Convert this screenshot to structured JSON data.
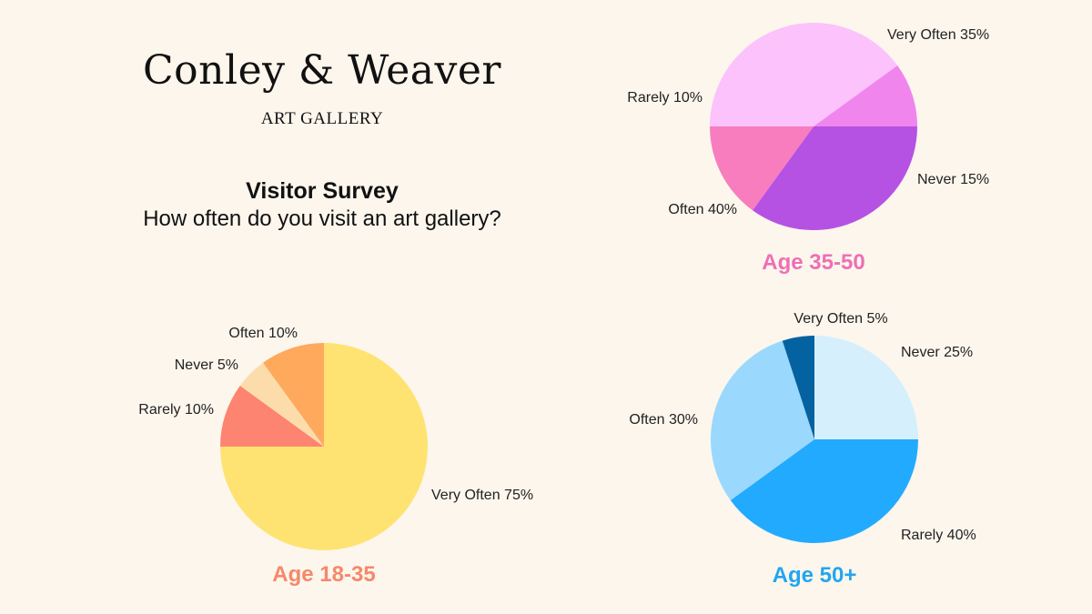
{
  "brand": {
    "title": "Conley & Weaver",
    "subtitle": "ART GALLERY"
  },
  "survey": {
    "title": "Visitor Survey",
    "question": "How often do you visit an art gallery?"
  },
  "chart_data": [
    {
      "type": "pie",
      "title": "Age 35-50",
      "title_color": "#ef6fb5",
      "slices": [
        {
          "label": "Very Often",
          "value": 35,
          "display": "Very Often 35%",
          "color": "#b552e3"
        },
        {
          "label": "Never",
          "value": 15,
          "display": "Never 15%",
          "color": "#f77dbe"
        },
        {
          "label": "Often",
          "value": 40,
          "display": "Often 40%",
          "color": "#fbc2fb"
        },
        {
          "label": "Rarely",
          "value": 10,
          "display": "Rarely 10%",
          "color": "#f185ee"
        }
      ]
    },
    {
      "type": "pie",
      "title": "Age 18-35",
      "title_color": "#f6886a",
      "slices": [
        {
          "label": "Very Often",
          "value": 75,
          "display": "Very Often 75%",
          "color": "#ffe372"
        },
        {
          "label": "Rarely",
          "value": 10,
          "display": "Rarely 10%",
          "color": "#fd8470"
        },
        {
          "label": "Never",
          "value": 5,
          "display": "Never 5%",
          "color": "#fddcab"
        },
        {
          "label": "Often",
          "value": 10,
          "display": "Often 10%",
          "color": "#fea95c"
        }
      ]
    },
    {
      "type": "pie",
      "title": "Age 50+",
      "title_color": "#22a6ee",
      "slices": [
        {
          "label": "Never",
          "value": 25,
          "display": "Never 25%",
          "color": "#d6effd"
        },
        {
          "label": "Rarely",
          "value": 40,
          "display": "Rarely 40%",
          "color": "#22aaff"
        },
        {
          "label": "Often",
          "value": 30,
          "display": "Often 30%",
          "color": "#9ad8fe"
        },
        {
          "label": "Very Often",
          "value": 5,
          "display": "Very Often 5%",
          "color": "#0562a0"
        }
      ]
    }
  ]
}
